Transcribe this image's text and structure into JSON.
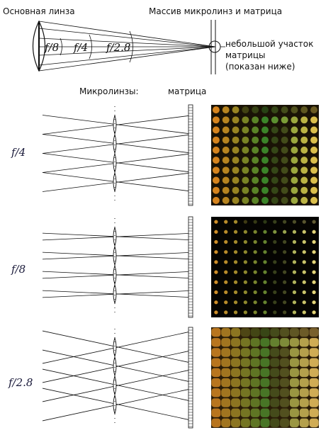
{
  "top": {
    "main_lens_label": "Основная линза",
    "array_label": "Массив микролинз и матрица",
    "callout_lines": [
      "небольшой участок",
      "матрицы",
      "(показан ниже)"
    ],
    "apertures": [
      "f/8",
      "f/4",
      "f/2.8"
    ]
  },
  "column_headers": {
    "microlenses": "Микролинзы:",
    "sensor": "матрица"
  },
  "rows": [
    {
      "label": "f/4",
      "dot_size": 0.72,
      "bg": "#1a1306",
      "tint_left": "#e08a20",
      "tint_mid": "#3d8a2a",
      "tint_right": "#e6c850"
    },
    {
      "label": "f/8",
      "dot_size": 0.38,
      "bg": "#050402",
      "tint_left": "#d9962a",
      "tint_mid": "#6a8a30",
      "tint_right": "#f0e080"
    },
    {
      "label": "f/2.8",
      "dot_size": 1.0,
      "bg": "#2a1c08",
      "tint_left": "#c07a20",
      "tint_mid": "#4a7a28",
      "tint_right": "#d9b45a"
    }
  ]
}
